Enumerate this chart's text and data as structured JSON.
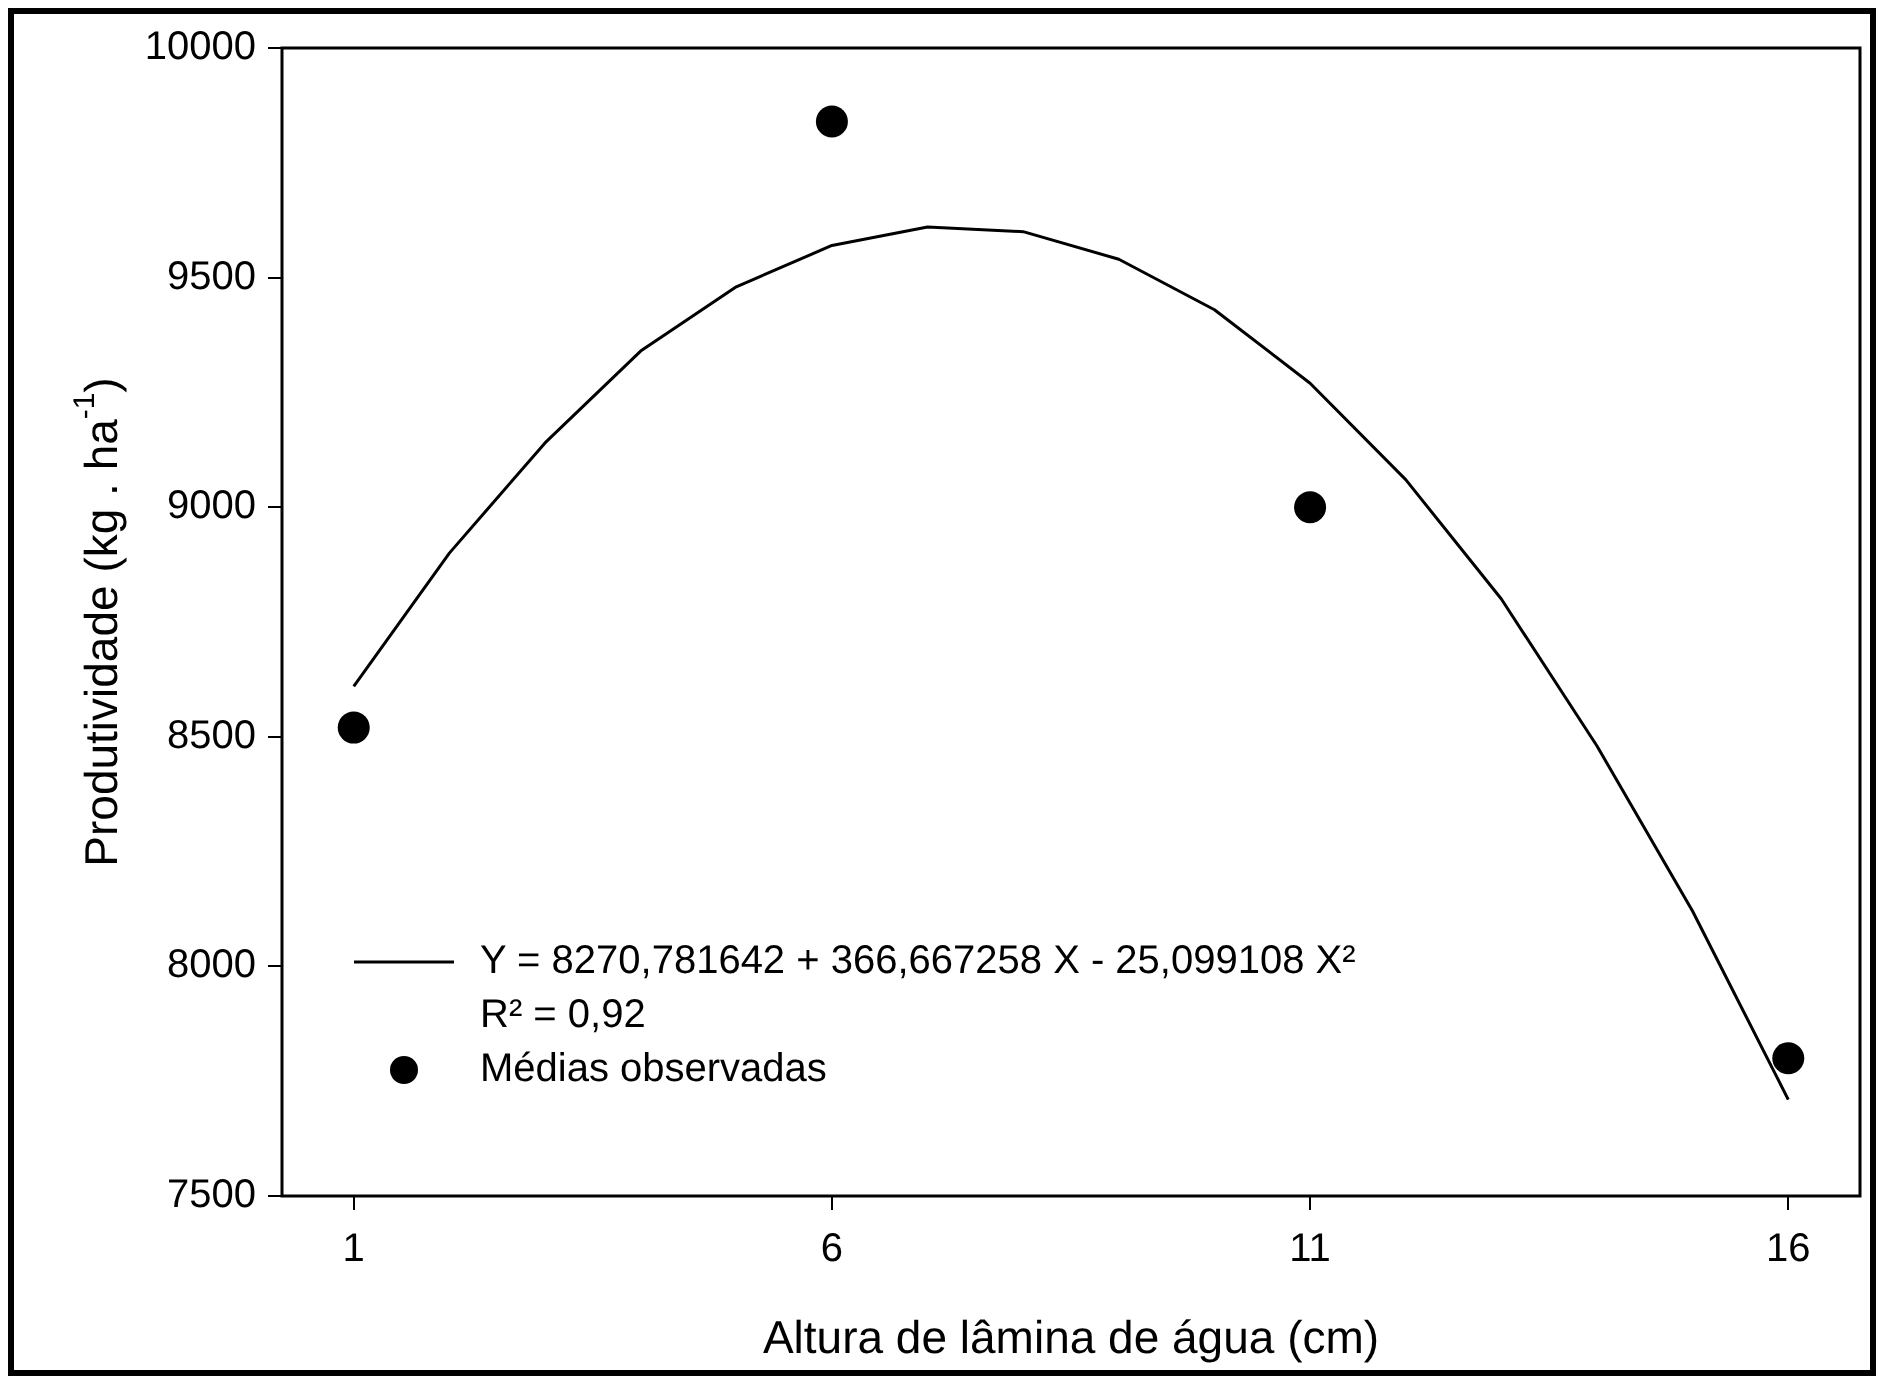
{
  "chart_data": {
    "type": "scatter",
    "xlabel": "Altura de lâmina de água (cm)",
    "ylabel": "Produtividade (kg . ha$^{-1}$)",
    "xlim": [
      0.25,
      16.75
    ],
    "xticks": [
      1,
      6,
      11,
      16
    ],
    "ylim": [
      7500,
      10000
    ],
    "yticks": [
      7500,
      8000,
      8500,
      9000,
      9500,
      10000
    ],
    "grid": false,
    "legend": "bottom left",
    "annotations": [
      "R² = 0,92"
    ],
    "series": [
      {
        "name": "Y = 8270,781642 + 366,667258 X - 25,099108 X²",
        "type": "line",
        "color": "#000000",
        "marker": "none",
        "x": [
          1,
          2,
          3,
          4,
          5,
          6,
          7,
          8,
          9,
          10,
          11,
          12,
          13,
          14,
          15,
          16
        ],
        "values": [
          8610,
          8900,
          9140,
          9340,
          9480,
          9570,
          9610,
          9600,
          9540,
          9430,
          9270,
          9060,
          8800,
          8480,
          8120,
          7710
        ]
      },
      {
        "name": "Médias observadas",
        "type": "scatter",
        "color": "#000000",
        "marker": "circle",
        "x": [
          1,
          6,
          11,
          16
        ],
        "values": [
          8520,
          9840,
          9000,
          7800
        ]
      }
    ]
  }
}
